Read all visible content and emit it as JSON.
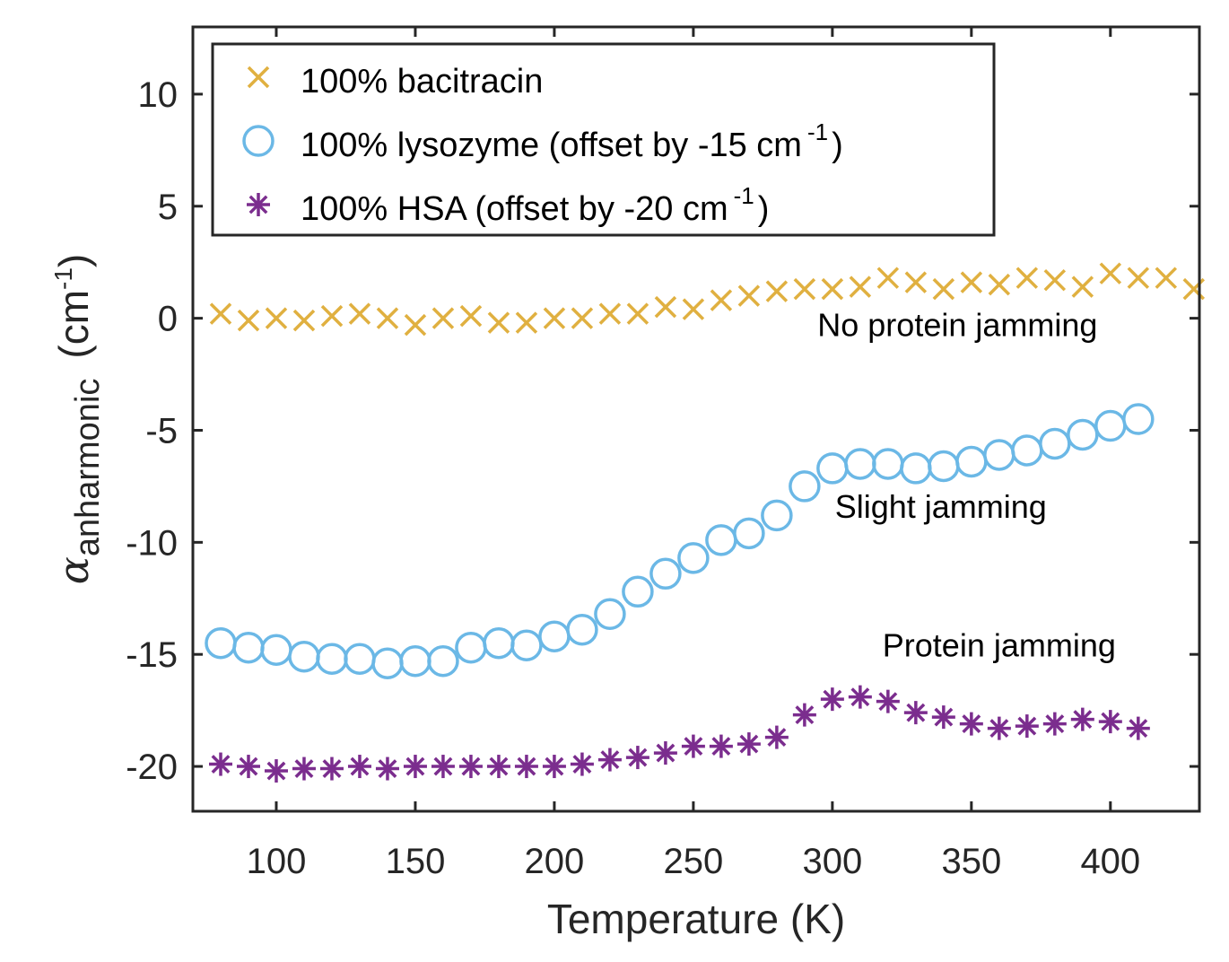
{
  "chart_data": {
    "type": "scatter",
    "xlabel": "Temperature (K)",
    "ylabel": {
      "symbol": "α",
      "subscript": "anharmonic",
      "unit_open": "(cm",
      "unit_sup": "-1",
      "unit_close": ")"
    },
    "xlim": [
      70,
      432
    ],
    "ylim": [
      -22,
      13
    ],
    "xticks": [
      100,
      150,
      200,
      250,
      300,
      350,
      400
    ],
    "yticks": [
      -20,
      -15,
      -10,
      -5,
      0,
      5,
      10
    ],
    "grid": false,
    "legend_position": "top-left",
    "series": [
      {
        "name": "100% bacitracin",
        "marker": "x",
        "color": "#E0B040",
        "x": [
          80,
          90,
          100,
          110,
          120,
          130,
          140,
          150,
          160,
          170,
          180,
          190,
          200,
          210,
          220,
          230,
          240,
          250,
          260,
          270,
          280,
          290,
          300,
          310,
          320,
          330,
          340,
          350,
          360,
          370,
          380,
          390,
          400,
          410,
          420,
          430
        ],
        "y": [
          0.2,
          -0.1,
          0.0,
          -0.1,
          0.1,
          0.2,
          0.0,
          -0.3,
          0.0,
          0.1,
          -0.2,
          -0.2,
          0.0,
          0.0,
          0.2,
          0.2,
          0.5,
          0.4,
          0.8,
          1.0,
          1.2,
          1.3,
          1.3,
          1.4,
          1.8,
          1.6,
          1.3,
          1.6,
          1.5,
          1.8,
          1.7,
          1.4,
          2.0,
          1.8,
          1.8,
          1.3
        ]
      },
      {
        "name": "100% lysozyme (offset by -15 cm",
        "name_sup": "-1",
        "name_close": ")",
        "marker": "o",
        "color": "#6BB8E6",
        "x": [
          80,
          90,
          100,
          110,
          120,
          130,
          140,
          150,
          160,
          170,
          180,
          190,
          200,
          210,
          220,
          230,
          240,
          250,
          260,
          270,
          280,
          290,
          300,
          310,
          320,
          330,
          340,
          350,
          360,
          370,
          380,
          390,
          400,
          410
        ],
        "y": [
          -14.5,
          -14.7,
          -14.8,
          -15.1,
          -15.2,
          -15.2,
          -15.4,
          -15.3,
          -15.3,
          -14.7,
          -14.5,
          -14.6,
          -14.2,
          -13.9,
          -13.2,
          -12.2,
          -11.4,
          -10.7,
          -9.9,
          -9.6,
          -8.8,
          -7.5,
          -6.7,
          -6.5,
          -6.5,
          -6.7,
          -6.6,
          -6.4,
          -6.1,
          -5.9,
          -5.6,
          -5.2,
          -4.8,
          -4.5
        ]
      },
      {
        "name": "100% HSA (offset by -20 cm",
        "name_sup": "-1",
        "name_close": ")",
        "marker": "*",
        "color": "#7B2D8E",
        "x": [
          80,
          90,
          100,
          110,
          120,
          130,
          140,
          150,
          160,
          170,
          180,
          190,
          200,
          210,
          220,
          230,
          240,
          250,
          260,
          270,
          280,
          290,
          300,
          310,
          320,
          330,
          340,
          350,
          360,
          370,
          380,
          390,
          400,
          410
        ],
        "y": [
          -19.9,
          -20.0,
          -20.2,
          -20.1,
          -20.1,
          -20.0,
          -20.1,
          -20.0,
          -20.0,
          -20.0,
          -20.0,
          -20.0,
          -20.0,
          -19.9,
          -19.7,
          -19.6,
          -19.4,
          -19.1,
          -19.1,
          -19.0,
          -18.7,
          -17.7,
          -17.0,
          -16.9,
          -17.1,
          -17.6,
          -17.8,
          -18.1,
          -18.3,
          -18.2,
          -18.1,
          -17.9,
          -18.0,
          -18.3
        ]
      }
    ],
    "annotations": [
      {
        "text": "No protein jamming",
        "x": 345,
        "y": -0.8
      },
      {
        "text": "Slight jamming",
        "x": 339,
        "y": -8.9
      },
      {
        "text": "Protein jamming",
        "x": 360,
        "y": -15.1
      }
    ]
  }
}
